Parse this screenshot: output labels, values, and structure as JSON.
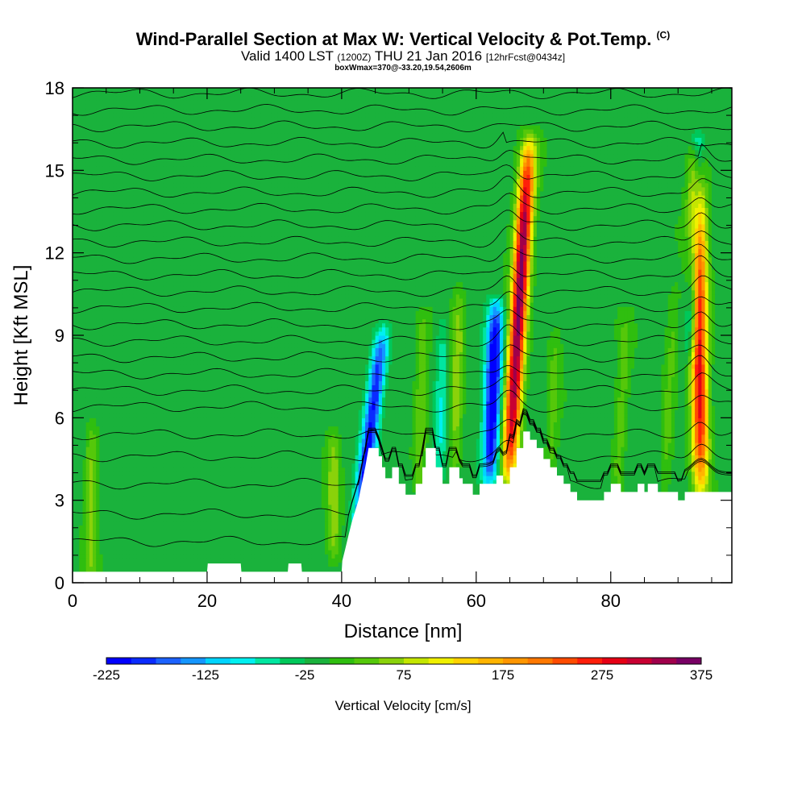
{
  "header": {
    "title": "Wind-Parallel Section at Max W: Vertical Velocity & Pot.Temp.",
    "title_mark": "(C)",
    "subtitle_main": "Valid 1400 LST",
    "subtitle_utc": "(1200Z)",
    "subtitle_date": "THU 21 Jan 2016",
    "subtitle_fcst": "[12hrFcst@0434z]",
    "box_line": "boxWmax=370@-33.20,19.54,2606m"
  },
  "chart_data": {
    "type": "heatmap",
    "title": "Wind-Parallel Section at Max W: Vertical Velocity & Pot.Temp.",
    "xlabel": "Distance [nm]",
    "ylabel": "Height [Kft MSL]",
    "xlim": [
      0,
      98
    ],
    "ylim": [
      0,
      18
    ],
    "x_ticks": [
      "0",
      "20",
      "40",
      "60",
      "80"
    ],
    "y_ticks": [
      "0",
      "3",
      "6",
      "9",
      "12",
      "15",
      "18"
    ],
    "background_value": -10,
    "updrafts": [
      {
        "x": 64.8,
        "base": 3.8,
        "top": 16.0,
        "peak": 370,
        "tilt": 0.25
      },
      {
        "x": 93.4,
        "base": 3.3,
        "top": 15.5,
        "peak": 310,
        "tilt": -0.05
      },
      {
        "x": 56.8,
        "base": 3.8,
        "top": 10.5,
        "peak": 75,
        "tilt": 0.1
      },
      {
        "x": 51.5,
        "base": 3.5,
        "top": 9.5,
        "peak": 60,
        "tilt": 0.1
      },
      {
        "x": 2.8,
        "base": 0.4,
        "top": 5.5,
        "peak": 70,
        "tilt": 0.0
      },
      {
        "x": 38.8,
        "base": 1.0,
        "top": 5.2,
        "peak": 75,
        "tilt": 0.0
      },
      {
        "x": 81.0,
        "base": 3.3,
        "top": 9.5,
        "peak": 50,
        "tilt": 0.2
      },
      {
        "x": 88.0,
        "base": 3.3,
        "top": 10.5,
        "peak": 45,
        "tilt": 0.2
      },
      {
        "x": 71.0,
        "base": 3.5,
        "top": 9.0,
        "peak": 40,
        "tilt": 0.15
      }
    ],
    "downdrafts": [
      {
        "x": 62.0,
        "base": 3.8,
        "top": 10.0,
        "peak": -225,
        "tilt": 0.15
      },
      {
        "x": 42.5,
        "base": 2.0,
        "top": 9.0,
        "peak": -200,
        "tilt": 0.5
      },
      {
        "x": 92.0,
        "base": 8.5,
        "top": 16.0,
        "peak": -150,
        "tilt": 0.15
      },
      {
        "x": 54.5,
        "base": 3.8,
        "top": 9.5,
        "peak": -60,
        "tilt": 0.1
      }
    ],
    "terrain_heights_kft": [
      [
        0,
        0.4
      ],
      [
        20,
        0.4
      ],
      [
        20.1,
        0.7
      ],
      [
        25,
        0.7
      ],
      [
        25.1,
        0.4
      ],
      [
        32,
        0.4
      ],
      [
        32.1,
        0.7
      ],
      [
        34,
        0.7
      ],
      [
        34.1,
        0.4
      ],
      [
        40,
        0.4
      ],
      [
        40.1,
        0.8
      ],
      [
        40.5,
        1.2
      ],
      [
        41,
        1.7
      ],
      [
        41.5,
        2.2
      ],
      [
        42,
        2.6
      ],
      [
        42.5,
        3.0
      ],
      [
        43,
        3.6
      ],
      [
        43.5,
        4.2
      ],
      [
        44,
        4.9
      ],
      [
        45.5,
        4.9
      ],
      [
        45.5,
        4.6
      ],
      [
        46,
        4.6
      ],
      [
        46,
        4.2
      ],
      [
        46.5,
        4.2
      ],
      [
        46.5,
        3.8
      ],
      [
        47.5,
        3.8
      ],
      [
        47.5,
        4.2
      ],
      [
        48.5,
        4.2
      ],
      [
        48.5,
        3.6
      ],
      [
        49.5,
        3.6
      ],
      [
        49.5,
        3.2
      ],
      [
        51,
        3.2
      ],
      [
        51,
        3.6
      ],
      [
        52,
        3.6
      ],
      [
        52,
        4.2
      ],
      [
        52.5,
        4.2
      ],
      [
        52.5,
        4.9
      ],
      [
        54,
        4.9
      ],
      [
        54,
        4.2
      ],
      [
        55,
        4.2
      ],
      [
        55,
        3.6
      ],
      [
        56,
        3.6
      ],
      [
        56,
        4.2
      ],
      [
        57.5,
        4.2
      ],
      [
        57.5,
        3.8
      ],
      [
        58,
        3.8
      ],
      [
        58,
        3.6
      ],
      [
        59.5,
        3.6
      ],
      [
        59.5,
        3.2
      ],
      [
        60.5,
        3.2
      ],
      [
        60.5,
        3.6
      ],
      [
        63,
        3.6
      ],
      [
        63,
        3.9
      ],
      [
        64,
        3.9
      ],
      [
        64,
        3.6
      ],
      [
        65,
        3.6
      ],
      [
        65,
        4.2
      ],
      [
        66,
        4.2
      ],
      [
        66,
        4.9
      ],
      [
        67,
        4.9
      ],
      [
        67,
        5.5
      ],
      [
        68,
        5.5
      ],
      [
        68,
        5.2
      ],
      [
        69,
        5.2
      ],
      [
        69,
        4.9
      ],
      [
        70,
        4.9
      ],
      [
        70,
        4.5
      ],
      [
        71,
        4.5
      ],
      [
        71,
        4.2
      ],
      [
        72,
        4.2
      ],
      [
        72,
        3.9
      ],
      [
        73,
        3.9
      ],
      [
        73,
        3.6
      ],
      [
        74,
        3.6
      ],
      [
        74,
        3.3
      ],
      [
        75,
        3.3
      ],
      [
        75,
        3.0
      ],
      [
        79,
        3.0
      ],
      [
        79,
        3.3
      ],
      [
        80,
        3.3
      ],
      [
        80,
        3.6
      ],
      [
        81.5,
        3.6
      ],
      [
        81.5,
        3.3
      ],
      [
        84,
        3.3
      ],
      [
        84,
        3.6
      ],
      [
        85,
        3.6
      ],
      [
        85,
        3.3
      ],
      [
        85.5,
        3.3
      ],
      [
        85.5,
        3.6
      ],
      [
        87,
        3.6
      ],
      [
        87,
        3.3
      ],
      [
        90,
        3.3
      ],
      [
        90,
        3.0
      ],
      [
        91,
        3.0
      ],
      [
        91,
        3.3
      ],
      [
        98,
        3.3
      ]
    ],
    "theta_contours_base_kft": [
      1.5,
      2.5,
      3.6,
      4.6,
      5.4,
      6.4,
      7.0,
      7.6,
      8.2,
      8.8,
      9.4,
      10.0,
      10.6,
      11.2,
      11.8,
      12.4,
      13.0,
      13.6,
      14.2,
      14.8,
      15.4,
      16.0,
      16.6,
      17.2,
      17.8
    ]
  },
  "colorbar": {
    "title": "Vertical Velocity [cm/s]",
    "min": -225,
    "step": 25,
    "labels": [
      "-225",
      "-125",
      "-25",
      "75",
      "175",
      "275",
      "375"
    ],
    "colors": [
      "#0000ff",
      "#0a2bff",
      "#1c62ff",
      "#1596ff",
      "#00d4ff",
      "#00f0f0",
      "#00e6a0",
      "#00c85a",
      "#1ab23c",
      "#2fbe0f",
      "#55c80a",
      "#8ad20a",
      "#c4e600",
      "#f0f000",
      "#ffd200",
      "#ffb400",
      "#ff9600",
      "#ff7800",
      "#ff4b00",
      "#ff1e0a",
      "#e60014",
      "#c80032",
      "#a0004b",
      "#780064"
    ]
  }
}
